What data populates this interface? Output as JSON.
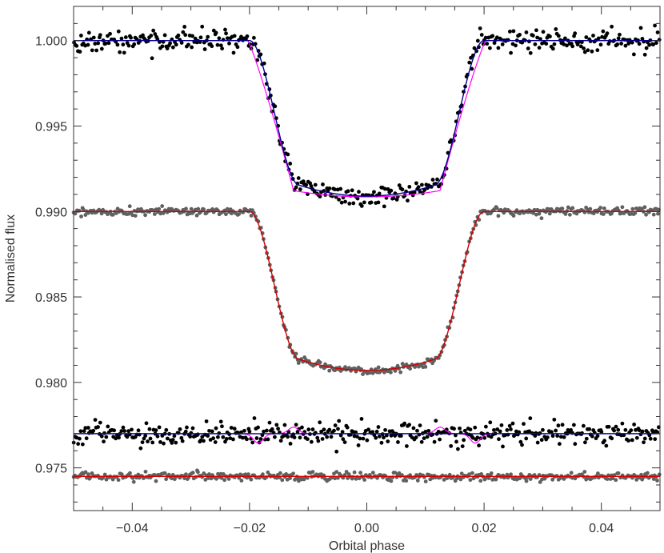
{
  "chart_data": {
    "type": "scatter",
    "xlabel": "Orbital phase",
    "ylabel": "Normalised flux",
    "xlim": [
      -0.05,
      0.05
    ],
    "ylim": [
      0.9725,
      1.002
    ],
    "grid": false,
    "x_ticks": [
      -0.04,
      -0.02,
      0.0,
      0.02,
      0.04
    ],
    "x_tick_labels": [
      "−0.04",
      "−0.02",
      "0.00",
      "0.02",
      "0.04"
    ],
    "y_ticks": [
      0.975,
      0.98,
      0.985,
      0.99,
      0.995,
      1.0
    ],
    "y_tick_labels": [
      "0.975",
      "0.980",
      "0.985",
      "0.990",
      "0.995",
      "1.000"
    ],
    "transit_model": {
      "mid_phase": 0.0,
      "full_duration_phase": 0.04,
      "ingress_duration_phase": 0.0085
    },
    "series": [
      {
        "marker_color": "#000000",
        "baseline": 1.0,
        "depth": 0.0091,
        "scatter": 0.00032,
        "model_color": "#00008b",
        "alt_model_color": "#ff00ff",
        "kind": "light_curve"
      },
      {
        "marker_color": "#606060",
        "baseline": 0.99,
        "depth": 0.0093,
        "scatter": 0.00012,
        "model_color": "#d40000",
        "kind": "light_curve"
      },
      {
        "marker_color": "#000000",
        "baseline": 0.977,
        "scatter": 0.00032,
        "model_color": "#00008b",
        "alt_model_color": "#ff00ff",
        "kind": "residuals"
      },
      {
        "marker_color": "#606060",
        "baseline": 0.9745,
        "scatter": 0.00012,
        "model_color": "#d40000",
        "kind": "residuals"
      }
    ]
  }
}
